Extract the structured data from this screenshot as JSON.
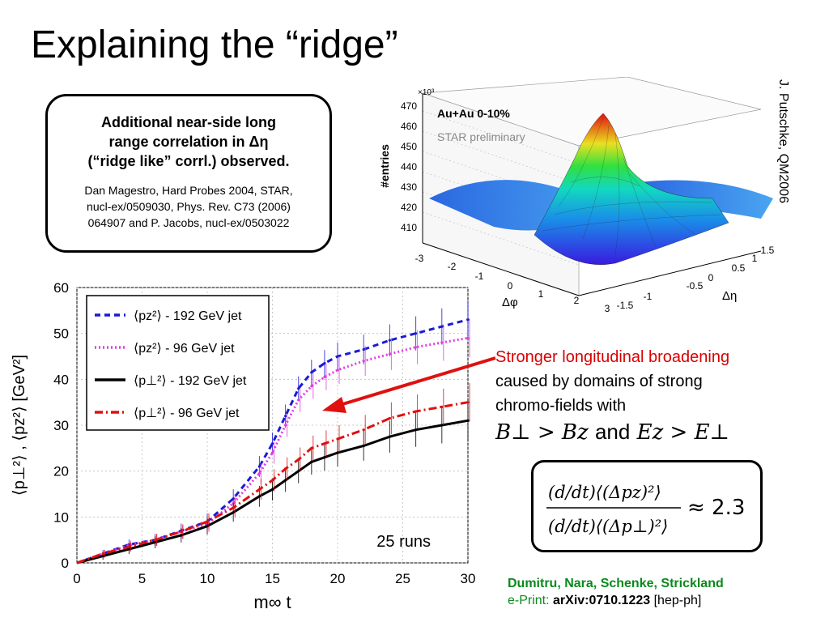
{
  "title": "Explaining the “ridge”",
  "box": {
    "main_lines": [
      "Additional near-side long",
      "range correlation in Δη",
      "(“ridge like” corrl.) observed."
    ],
    "ref_lines": [
      "Dan Magestro, Hard Probes 2004, STAR,",
      "nucl-ex/0509030, Phys. Rev. C73 (2006)",
      "064907  and P. Jacobs, nucl-ex/0503022"
    ]
  },
  "credit": "J. Putschke, QM2006",
  "surface_plot": {
    "zlabel": "#entries",
    "zscale": "×10³",
    "zticks": [
      "470",
      "460",
      "450",
      "440",
      "430",
      "420",
      "410"
    ],
    "label1": "Au+Au 0-10%",
    "label2": "STAR preliminary",
    "phi_label": "Δφ",
    "eta_label": "Δη",
    "phi_ticks": [
      "-3",
      "-2",
      "-1",
      "0",
      "1",
      "2",
      "3"
    ],
    "eta_ticks": [
      "-1.5",
      "-1",
      "-0.5",
      "0",
      "0.5",
      "1",
      "1.5"
    ]
  },
  "annotation": {
    "red_line": "Stronger longitudinal broadening",
    "line2": "caused by domains of strong",
    "line3": "chromo-fields with",
    "eq_left": "B⊥ > Bz",
    "eq_and": "and",
    "eq_right": "Ez > E⊥"
  },
  "formula": {
    "num": "(d/dt)⟨(Δpz)²⟩",
    "den": "(d/dt)⟨(Δp⊥)²⟩",
    "result": "≈ 2.3"
  },
  "authors": {
    "names": "Dumitru, Nara, Schenke, Strickland",
    "eprint_prefix": "e-Print:",
    "arxiv": "arXiv:0710.1223",
    "category": "[hep-ph]"
  },
  "colors": {
    "blue": "#1a1ad8",
    "magenta": "#e040e0",
    "black": "#000000",
    "red": "#e01010",
    "arrow": "#e01010"
  },
  "chart_data": {
    "type": "line",
    "xlabel": "m∞ t",
    "ylabel": "⟨p⊥²⟩ , ⟨pz²⟩  [GeV²]",
    "xlim": [
      0,
      30
    ],
    "ylim": [
      0,
      60
    ],
    "xticks": [
      0,
      5,
      10,
      15,
      20,
      25,
      30
    ],
    "yticks": [
      0,
      10,
      20,
      30,
      40,
      50,
      60
    ],
    "grid": true,
    "legend_position": "top-left",
    "annotation": "25 runs",
    "x": [
      0,
      2,
      4,
      6,
      8,
      10,
      12,
      14,
      15,
      16,
      17,
      18,
      19,
      20,
      22,
      24,
      26,
      28,
      30
    ],
    "series": [
      {
        "name": "⟨pz²⟩ - 192 GeV jet",
        "color": "#1a1ad8",
        "style": "dashed",
        "values": [
          0,
          2,
          4,
          5,
          7,
          9,
          14,
          21,
          26,
          32,
          38,
          41.5,
          43.5,
          45,
          46.5,
          48.5,
          50,
          51.5,
          53
        ]
      },
      {
        "name": "⟨pz²⟩ - 96 GeV jet",
        "color": "#e040e0",
        "style": "dotted",
        "values": [
          0,
          2,
          3.8,
          5,
          6.8,
          8.5,
          13,
          19.5,
          24,
          30,
          35.5,
          38.5,
          40.5,
          42,
          44,
          45.5,
          47,
          48,
          49
        ]
      },
      {
        "name": "⟨p⊥²⟩ - 192 GeV jet",
        "color": "#000000",
        "style": "solid",
        "values": [
          0,
          1.5,
          3,
          4.5,
          6,
          8,
          11,
          14.5,
          16,
          18,
          20,
          22,
          23,
          24,
          25.5,
          27.5,
          29,
          30,
          31
        ]
      },
      {
        "name": "⟨p⊥²⟩ - 96 GeV jet",
        "color": "#e01010",
        "style": "dashdot",
        "values": [
          0,
          2,
          3.5,
          5,
          6.8,
          9,
          12,
          16,
          18,
          20.5,
          22.5,
          25,
          26,
          27,
          29,
          31.5,
          33,
          34,
          35
        ]
      }
    ]
  }
}
